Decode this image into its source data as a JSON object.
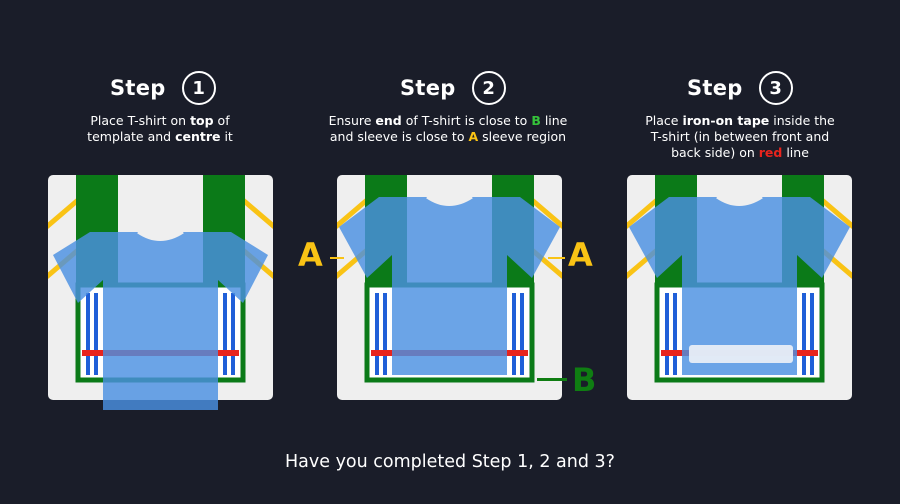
{
  "steps": [
    {
      "label": "Step",
      "number": "1",
      "instruction": [
        {
          "t": "Place T-shirt on "
        },
        {
          "t": "top",
          "b": true
        },
        {
          "t": " of"
        },
        {
          "br": true
        },
        {
          "t": "template and "
        },
        {
          "t": "centre",
          "b": true
        },
        {
          "t": " it"
        }
      ]
    },
    {
      "label": "Step",
      "number": "2",
      "instruction": [
        {
          "t": "Ensure "
        },
        {
          "t": "end",
          "b": true
        },
        {
          "t": " of T-shirt is close to "
        },
        {
          "t": "B",
          "c": "green"
        },
        {
          "t": " line"
        },
        {
          "br": true
        },
        {
          "t": "and sleeve is close to "
        },
        {
          "t": "A",
          "c": "yellow"
        },
        {
          "t": " sleeve region"
        }
      ]
    },
    {
      "label": "Step",
      "number": "3",
      "instruction": [
        {
          "t": "Place "
        },
        {
          "t": "iron-on tape",
          "b": true
        },
        {
          "t": " inside the"
        },
        {
          "br": true
        },
        {
          "t": "T-shirt (in between front and"
        },
        {
          "br": true
        },
        {
          "t": "back side) on "
        },
        {
          "t": "red",
          "c": "red"
        },
        {
          "t": " line"
        }
      ]
    }
  ],
  "markers": {
    "a_left": "A",
    "a_right": "A",
    "b": "B"
  },
  "footer": {
    "question": "Have you completed Step 1, 2 and 3?"
  },
  "colors": {
    "background": "#1a1d29",
    "panel": "#efefef",
    "template_green": "#0b7a18",
    "sleeve_yellow": "#f9c315",
    "line_red": "#e8241d",
    "stripe_blue": "#1f5fd8",
    "shirt_blue": "#4a90e2",
    "b_green": "#0f7d12",
    "a_yellow": "#f9c315"
  }
}
